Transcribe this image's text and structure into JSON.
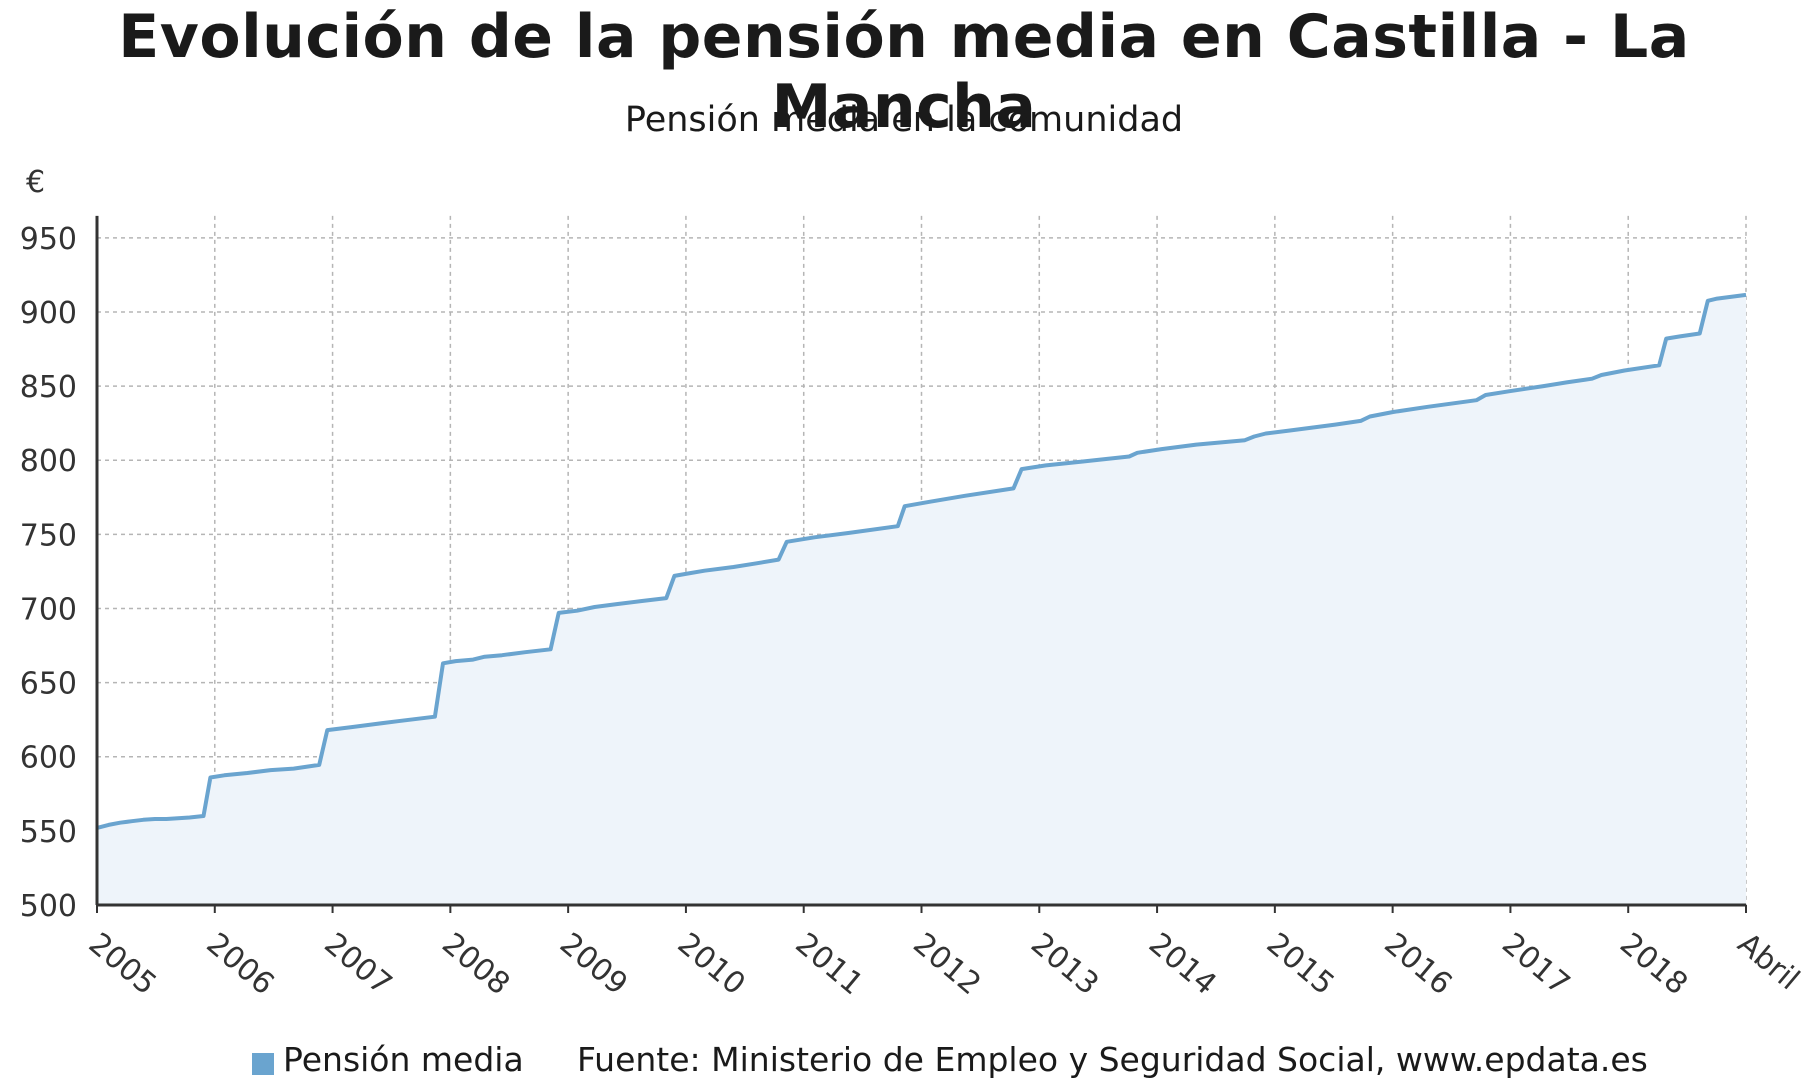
{
  "chart_data": {
    "type": "area",
    "title": "Evolución de la pensión media en Castilla - La Mancha",
    "subtitle": "Pensión media en la comunidad",
    "ylabel": "€",
    "ylim": [
      500,
      960
    ],
    "yticks": [
      500,
      550,
      600,
      650,
      700,
      750,
      800,
      850,
      900,
      950
    ],
    "x_tick_labels": [
      "2005",
      "2006",
      "2007",
      "2008",
      "2009",
      "2010",
      "2011",
      "2012",
      "2013",
      "2014",
      "2015",
      "2016",
      "2017",
      "2018",
      "Abril"
    ],
    "grid": true,
    "legend": "bottom",
    "series": [
      {
        "name": "Pensión media",
        "color": "#6aa4cf",
        "fill": "#eef4fa",
        "points": [
          [
            2005.0,
            552
          ],
          [
            2005.1,
            554
          ],
          [
            2005.2,
            555.5
          ],
          [
            2005.3,
            556.5
          ],
          [
            2005.4,
            557.5
          ],
          [
            2005.5,
            558
          ],
          [
            2005.6,
            558
          ],
          [
            2005.7,
            558.5
          ],
          [
            2005.8,
            559
          ],
          [
            2005.92,
            560
          ],
          [
            2005.98,
            586
          ],
          [
            2006.1,
            587.5
          ],
          [
            2006.3,
            589
          ],
          [
            2006.5,
            591
          ],
          [
            2006.7,
            592
          ],
          [
            2006.92,
            594.5
          ],
          [
            2006.99,
            618
          ],
          [
            2007.2,
            620
          ],
          [
            2007.4,
            622
          ],
          [
            2007.6,
            624
          ],
          [
            2007.92,
            627
          ],
          [
            2007.99,
            663
          ],
          [
            2008.1,
            664.5
          ],
          [
            2008.25,
            665.5
          ],
          [
            2008.35,
            667.5
          ],
          [
            2008.5,
            668.5
          ],
          [
            2008.7,
            670.5
          ],
          [
            2008.92,
            672.5
          ],
          [
            2008.99,
            697
          ],
          [
            2009.15,
            698.5
          ],
          [
            2009.3,
            701
          ],
          [
            2009.5,
            703
          ],
          [
            2009.7,
            705
          ],
          [
            2009.92,
            707
          ],
          [
            2009.99,
            722
          ],
          [
            2010.1,
            723.5
          ],
          [
            2010.25,
            725.5
          ],
          [
            2010.5,
            728
          ],
          [
            2010.7,
            730.5
          ],
          [
            2010.89,
            733
          ],
          [
            2010.96,
            745
          ],
          [
            2011.2,
            748
          ],
          [
            2011.5,
            751
          ],
          [
            2011.92,
            755.5
          ],
          [
            2011.98,
            769
          ],
          [
            2012.2,
            772
          ],
          [
            2012.5,
            776
          ],
          [
            2012.92,
            781
          ],
          [
            2012.99,
            794
          ],
          [
            2013.2,
            796.5
          ],
          [
            2013.5,
            799
          ],
          [
            2013.8,
            801.5
          ],
          [
            2013.92,
            802.5
          ],
          [
            2013.99,
            805
          ],
          [
            2014.2,
            807.5
          ],
          [
            2014.5,
            810.5
          ],
          [
            2014.92,
            813.5
          ],
          [
            2015.0,
            816
          ],
          [
            2015.1,
            818
          ],
          [
            2015.3,
            820
          ],
          [
            2015.5,
            822
          ],
          [
            2015.7,
            824
          ],
          [
            2015.92,
            826.5
          ],
          [
            2016.0,
            829.5
          ],
          [
            2016.2,
            832.5
          ],
          [
            2016.5,
            836
          ],
          [
            2016.92,
            840.5
          ],
          [
            2017.0,
            844
          ],
          [
            2017.2,
            846.5
          ],
          [
            2017.5,
            850
          ],
          [
            2017.7,
            852.5
          ],
          [
            2017.92,
            855
          ],
          [
            2018.0,
            857.5
          ],
          [
            2018.2,
            860.5
          ],
          [
            2018.5,
            864
          ],
          [
            2018.56,
            882
          ],
          [
            2018.68,
            883.5
          ],
          [
            2018.85,
            885.5
          ],
          [
            2018.92,
            907.5
          ],
          [
            2019.0,
            909
          ],
          [
            2019.25,
            911.5
          ]
        ]
      }
    ]
  },
  "legend": {
    "label": "Pensión media",
    "color": "#6aa4cf"
  },
  "source": "Fuente: Ministerio de Empleo y Seguridad Social, www.epdata.es"
}
